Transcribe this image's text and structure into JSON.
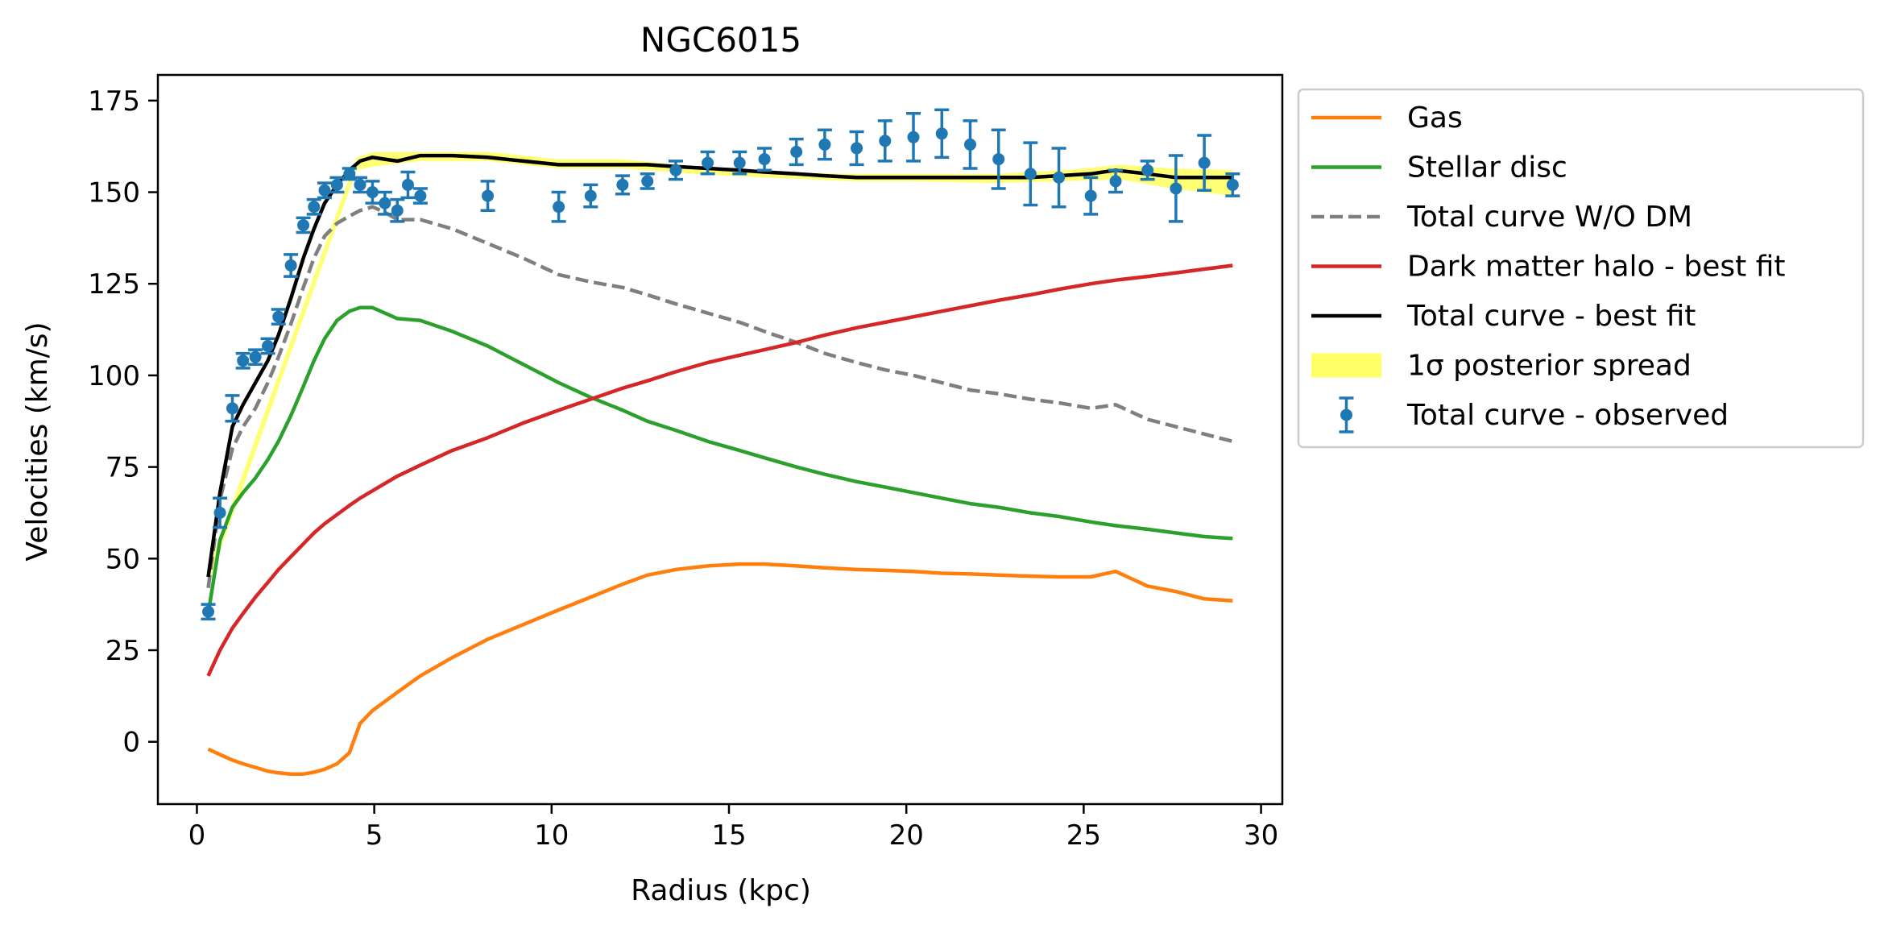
{
  "chart_data": {
    "type": "line",
    "title": "NGC6015",
    "xlabel": "Radius (kpc)",
    "ylabel": "Velocities (km/s)",
    "xlim": [
      -1.1,
      30.6
    ],
    "ylim": [
      -17,
      182
    ],
    "xticks": [
      0,
      5,
      10,
      15,
      20,
      25,
      30
    ],
    "yticks": [
      0,
      25,
      50,
      75,
      100,
      125,
      150,
      175
    ],
    "grid": false,
    "legend_position": "outside-right-top",
    "legend": [
      {
        "label": "Gas",
        "kind": "line",
        "color": "#ff7f0e",
        "dash": "solid"
      },
      {
        "label": "Stellar disc",
        "kind": "line",
        "color": "#2ca02c",
        "dash": "solid"
      },
      {
        "label": "Total curve W/O DM",
        "kind": "line",
        "color": "#7f7f7f",
        "dash": "dashed"
      },
      {
        "label": "Dark matter halo - best fit",
        "kind": "line",
        "color": "#d62728",
        "dash": "solid"
      },
      {
        "label": "Total curve - best fit",
        "kind": "line",
        "color": "#000000",
        "dash": "solid"
      },
      {
        "label": "1σ posterior spread",
        "kind": "patch",
        "color": "#ffff66",
        "dash": "solid"
      },
      {
        "label": "Total curve - observed",
        "kind": "errorbar",
        "color": "#1f77b4",
        "dash": "solid"
      }
    ],
    "band": {
      "color": "#ffff66",
      "x": [
        0.32,
        4.5,
        5.0,
        6.3,
        8.2,
        10.2,
        12.0,
        14.0,
        16.0,
        18.5,
        20.0,
        22.5,
        24.5,
        26.0,
        27.5,
        29.2
      ],
      "lower": [
        43,
        156,
        157,
        158.5,
        158.5,
        156.5,
        156.5,
        155,
        154,
        153,
        153,
        152.5,
        153,
        153.5,
        151,
        149
      ],
      "upper": [
        47,
        159.5,
        161,
        161,
        161,
        159,
        159,
        157,
        155.5,
        155,
        155,
        155,
        156,
        157.5,
        156.5,
        156
      ]
    },
    "series": [
      {
        "name": "Gas",
        "color": "#ff7f0e",
        "dash": "solid",
        "x": [
          0.32,
          0.65,
          1.0,
          1.3,
          1.65,
          2.0,
          2.3,
          2.65,
          3.0,
          3.3,
          3.6,
          3.95,
          4.3,
          4.6,
          4.95,
          5.3,
          5.65,
          6.3,
          7.2,
          8.2,
          9.2,
          10.2,
          11.1,
          12.0,
          12.7,
          13.5,
          14.4,
          15.3,
          16.0,
          16.9,
          17.7,
          18.6,
          19.4,
          20.2,
          21.0,
          21.8,
          22.6,
          23.5,
          24.3,
          25.2,
          25.9,
          26.8,
          27.6,
          28.4,
          29.2
        ],
        "values": [
          -2,
          -3.5,
          -5,
          -6,
          -7,
          -8,
          -8.5,
          -8.8,
          -8.8,
          -8.3,
          -7.5,
          -6,
          -3,
          5,
          8.5,
          11,
          13.5,
          18,
          23,
          28,
          32,
          36,
          39.5,
          43,
          45.5,
          47,
          48,
          48.5,
          48.5,
          48,
          47.5,
          47,
          46.8,
          46.5,
          46,
          45.8,
          45.5,
          45.2,
          45,
          45,
          46.5,
          42.5,
          41,
          39,
          38.5
        ]
      },
      {
        "name": "Stellar disc",
        "color": "#2ca02c",
        "dash": "solid",
        "x": [
          0.32,
          0.65,
          1.0,
          1.3,
          1.65,
          2.0,
          2.3,
          2.65,
          3.0,
          3.3,
          3.6,
          3.95,
          4.3,
          4.6,
          4.95,
          5.3,
          5.65,
          6.3,
          7.2,
          8.2,
          9.2,
          10.2,
          11.1,
          12.0,
          12.7,
          13.5,
          14.4,
          15.3,
          16.0,
          16.9,
          17.7,
          18.6,
          19.4,
          20.2,
          21.0,
          21.8,
          22.6,
          23.5,
          24.3,
          25.2,
          25.9,
          26.8,
          27.6,
          28.4,
          29.2
        ],
        "values": [
          35,
          55,
          64,
          68,
          72,
          77,
          82,
          89,
          97,
          104,
          110,
          115,
          117.5,
          118.5,
          118.5,
          117,
          115.5,
          115,
          112,
          108,
          103,
          98,
          94,
          90.5,
          87.5,
          85,
          82,
          79.5,
          77.5,
          75,
          73,
          71,
          69.5,
          68,
          66.5,
          65,
          64,
          62.5,
          61.5,
          60,
          59,
          58,
          57,
          56,
          55.5
        ]
      },
      {
        "name": "Total curve W/O DM",
        "color": "#7f7f7f",
        "dash": "dashed",
        "x": [
          0.32,
          0.65,
          1.0,
          1.3,
          1.65,
          2.0,
          2.3,
          2.65,
          3.0,
          3.3,
          3.6,
          3.95,
          4.3,
          4.6,
          4.95,
          5.3,
          5.65,
          6.3,
          7.2,
          8.2,
          9.2,
          10.2,
          11.1,
          12.0,
          12.7,
          13.5,
          14.4,
          15.3,
          16.0,
          16.9,
          17.7,
          18.6,
          19.4,
          20.2,
          21.0,
          21.8,
          22.6,
          23.5,
          24.3,
          25.2,
          25.9,
          26.8,
          27.6,
          28.4,
          29.2
        ],
        "values": [
          42,
          66,
          80,
          86,
          91,
          98,
          105,
          114,
          124,
          132,
          138,
          141.5,
          143.5,
          145,
          146,
          144.5,
          142.5,
          142.5,
          140,
          136,
          132,
          127.5,
          125.5,
          124,
          122,
          119.5,
          117,
          114.5,
          112,
          109,
          106,
          103.5,
          101.5,
          100,
          98,
          96,
          95,
          93.5,
          92.5,
          91,
          92,
          88,
          86,
          84,
          82
        ]
      },
      {
        "name": "Dark matter halo - best fit",
        "color": "#d62728",
        "dash": "solid",
        "x": [
          0.32,
          0.65,
          1.0,
          1.3,
          1.65,
          2.0,
          2.3,
          2.65,
          3.0,
          3.3,
          3.6,
          3.95,
          4.3,
          4.6,
          4.95,
          5.3,
          5.65,
          6.3,
          7.2,
          8.2,
          9.2,
          10.2,
          11.1,
          12.0,
          12.7,
          13.5,
          14.4,
          15.3,
          16.0,
          16.9,
          17.7,
          18.6,
          19.4,
          20.2,
          21.0,
          21.8,
          22.6,
          23.5,
          24.3,
          25.2,
          25.9,
          26.8,
          27.6,
          28.4,
          29.2
        ],
        "values": [
          18,
          25,
          31,
          35,
          39.5,
          43.5,
          47,
          50.5,
          54,
          57,
          59.5,
          62,
          64.5,
          66.5,
          68.5,
          70.5,
          72.5,
          75.5,
          79.5,
          83,
          87,
          90.5,
          93.5,
          96.5,
          98.5,
          101,
          103.5,
          105.5,
          107,
          109,
          111,
          113,
          114.5,
          116,
          117.5,
          119,
          120.5,
          122,
          123.5,
          125,
          126,
          127,
          128,
          129,
          130
        ]
      },
      {
        "name": "Total curve - best fit",
        "color": "#000000",
        "dash": "solid",
        "x": [
          0.32,
          0.65,
          1.0,
          1.3,
          1.65,
          2.0,
          2.3,
          2.65,
          3.0,
          3.3,
          3.6,
          3.95,
          4.3,
          4.6,
          4.95,
          5.3,
          5.65,
          6.3,
          7.2,
          8.2,
          9.2,
          10.2,
          11.1,
          12.0,
          12.7,
          13.5,
          14.4,
          15.3,
          16.0,
          16.9,
          17.7,
          18.6,
          19.4,
          20.2,
          21.0,
          21.8,
          22.6,
          23.5,
          24.3,
          25.2,
          25.9,
          26.8,
          27.6,
          28.4,
          29.2
        ],
        "values": [
          45,
          68,
          86,
          92,
          98,
          104,
          111,
          121,
          132,
          140,
          147,
          152,
          156,
          158.5,
          159.5,
          159,
          158.5,
          160,
          160,
          159.5,
          158.5,
          157.5,
          157.5,
          157.5,
          157.5,
          157,
          156.5,
          156,
          155.5,
          155,
          154.5,
          154,
          154,
          154,
          154,
          154,
          154,
          154,
          154.5,
          155,
          156,
          155,
          154,
          154,
          154
        ]
      }
    ],
    "observed": {
      "name": "Total curve - observed",
      "color": "#1f77b4",
      "x": [
        0.32,
        0.65,
        1.0,
        1.3,
        1.65,
        2.0,
        2.3,
        2.65,
        3.0,
        3.3,
        3.6,
        3.95,
        4.3,
        4.6,
        4.95,
        5.3,
        5.65,
        5.95,
        6.3,
        8.2,
        10.2,
        11.1,
        12.0,
        12.7,
        13.5,
        14.4,
        15.3,
        16.0,
        16.9,
        17.7,
        18.6,
        19.4,
        20.2,
        21.0,
        21.8,
        22.6,
        23.5,
        24.3,
        25.2,
        25.9,
        26.8,
        27.6,
        28.4,
        29.2
      ],
      "y": [
        35.5,
        62.5,
        91,
        104,
        105,
        108,
        116,
        130,
        141,
        146,
        150.5,
        152,
        155,
        152,
        150,
        147,
        145,
        152,
        149,
        149,
        146,
        149,
        152,
        153,
        156,
        158,
        158,
        159,
        161,
        163,
        162,
        164,
        165,
        166,
        163,
        159,
        155,
        154,
        149,
        153,
        156,
        151,
        158,
        152
      ],
      "err": [
        2,
        4,
        3.5,
        2,
        2,
        2,
        2,
        3,
        2,
        2,
        2,
        2,
        1.5,
        2,
        3,
        3,
        3,
        3.5,
        2,
        4,
        4,
        3,
        2.5,
        2,
        2.5,
        3,
        3,
        3,
        3.5,
        4,
        4.5,
        5.5,
        6.5,
        6.5,
        6.5,
        8,
        8.5,
        8,
        5,
        3,
        2.5,
        9,
        7.5,
        3
      ]
    }
  }
}
